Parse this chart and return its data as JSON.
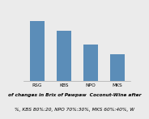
{
  "categories": [
    "RSG",
    "KBS",
    "NPO",
    "MKS"
  ],
  "values": [
    18,
    15,
    11,
    8
  ],
  "bar_color": "#5b8db8",
  "ylim": [
    0,
    22
  ],
  "title_fontsize": 4.2,
  "tick_fontsize": 4.2,
  "caption_line1": "of changes in Brix of Pawpaw  Coconut-Wine after",
  "caption_line2": "%, KBS 80%:20, NPO 70%:30%, MKS 60%:40%, W",
  "background_color": "#ebebeb"
}
